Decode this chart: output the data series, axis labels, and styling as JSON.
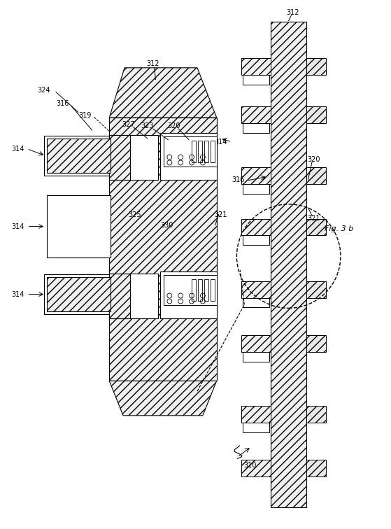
{
  "fig_label": "Fig. 3 b",
  "bg_color": "#ffffff",
  "lw": 0.8,
  "fs": 7,
  "fs_fig": 8
}
